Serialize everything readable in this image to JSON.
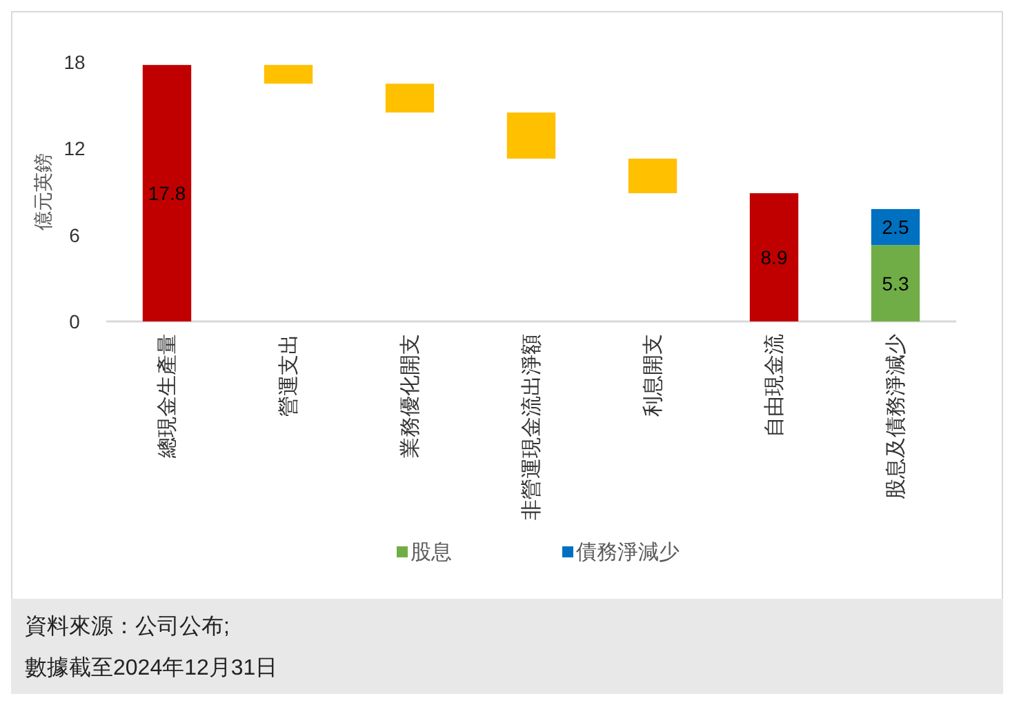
{
  "chart_data": {
    "type": "bar",
    "ylabel": "億元英鎊",
    "categories": [
      "總現金生產量",
      "營運支出",
      "業務優化開支",
      "非營運現金流出淨額",
      "利息開支",
      "自由現金流",
      "股息及債務淨減少"
    ],
    "series": [
      {
        "colors": [
          "#c00000",
          "#ffc000",
          "#ffc000",
          "#ffc000",
          "#ffc000",
          "#c00000",
          null
        ],
        "values": [
          17.8,
          1.3,
          2.0,
          3.2,
          2.4,
          8.9,
          null
        ],
        "base": [
          0,
          16.5,
          14.5,
          11.3,
          8.9,
          0,
          null
        ],
        "value_labels": [
          "17.8",
          null,
          null,
          null,
          null,
          "8.9",
          null
        ]
      },
      {
        "name": "股息",
        "color": "#70ad47",
        "values": [
          null,
          null,
          null,
          null,
          null,
          null,
          5.3
        ],
        "value_labels": [
          null,
          null,
          null,
          null,
          null,
          null,
          "5.3"
        ]
      },
      {
        "name": "債務淨減少",
        "color": "#0070c0",
        "values": [
          null,
          null,
          null,
          null,
          null,
          null,
          2.5
        ],
        "value_labels": [
          null,
          null,
          null,
          null,
          null,
          null,
          "2.5"
        ]
      }
    ],
    "stacked": true,
    "ylim": [
      0,
      18
    ],
    "yticks": [
      0,
      6,
      12,
      18
    ],
    "legend": "bottom",
    "annotations": [
      "資料來源：公司公布;",
      "數據截至2024年12月31日"
    ]
  }
}
